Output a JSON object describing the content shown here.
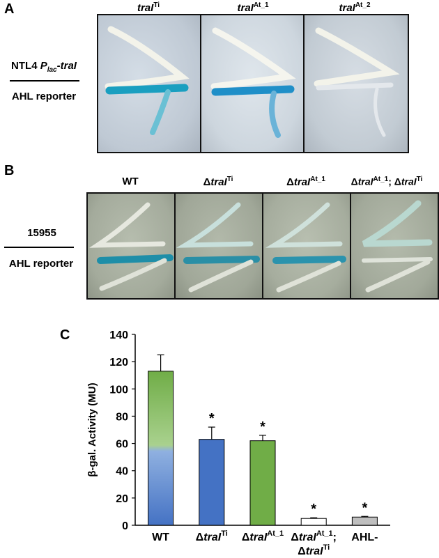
{
  "panel_a": {
    "letter": "A",
    "columns": [
      {
        "name": "traI",
        "sup": "Ti"
      },
      {
        "name": "traI",
        "sup": "At_1"
      },
      {
        "name": "traI",
        "sup": "At_2"
      }
    ],
    "top_label": "NTL4 ",
    "top_label_p": "P",
    "top_label_sub": "lac",
    "top_label_gene": "-traI",
    "bottom_label": "AHL reporter"
  },
  "panel_b": {
    "letter": "B",
    "columns": [
      {
        "prefix": "WT",
        "name": "",
        "sup": "",
        "suffix": ""
      },
      {
        "prefix": "Δ",
        "name": "traI",
        "sup": "Ti",
        "suffix": ""
      },
      {
        "prefix": "Δ",
        "name": "traI",
        "sup": "At_1",
        "suffix": ""
      },
      {
        "prefix": "Δ",
        "name": "traI",
        "sup": "At_1",
        "suffix": "; Δ",
        "name2": "traI",
        "sup2": "Ti"
      }
    ],
    "top_label": "15955",
    "bottom_label": "AHL reporter"
  },
  "panel_c": {
    "letter": "C",
    "significance_mark": "*"
  },
  "chart_data": {
    "type": "bar",
    "ylabel": "β-gal. Activity (MU)",
    "ylim": [
      0,
      140
    ],
    "yticks": [
      0,
      20,
      40,
      60,
      80,
      100,
      120,
      140
    ],
    "categories": [
      {
        "line1_prefix": "",
        "line1_name": "WT",
        "line1_sup": "",
        "line2_prefix": "",
        "line2_name": "",
        "line2_sup": ""
      },
      {
        "line1_prefix": "Δ",
        "line1_name": "traI",
        "line1_sup": "Ti",
        "line2_prefix": "",
        "line2_name": "",
        "line2_sup": ""
      },
      {
        "line1_prefix": "Δ",
        "line1_name": "traI",
        "line1_sup": "At_1",
        "line2_prefix": "",
        "line2_name": "",
        "line2_sup": ""
      },
      {
        "line1_prefix": "Δ",
        "line1_name": "traI",
        "line1_sup": "At_1",
        "line1_suffix": ";",
        "line2_prefix": "Δ",
        "line2_name": "traI",
        "line2_sup": "Ti"
      },
      {
        "line1_prefix": "",
        "line1_name": "AHL-",
        "line1_sup": "",
        "line2_prefix": "",
        "line2_name": "",
        "line2_sup": ""
      }
    ],
    "values": [
      113,
      63,
      62,
      5,
      6
    ],
    "errors": [
      12,
      9,
      4,
      0.5,
      0.5
    ],
    "significant": [
      false,
      true,
      true,
      true,
      true
    ],
    "bar_colors": [
      "#4472c4",
      "#4472c4",
      "#70ad47",
      "#ffffff",
      "#bfbfbf"
    ],
    "grid": false
  }
}
